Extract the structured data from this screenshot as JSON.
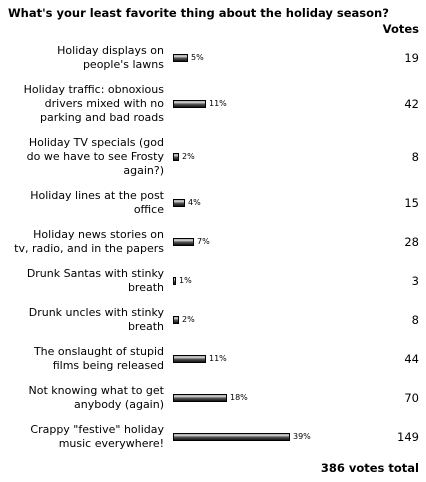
{
  "title": "What's your least favorite thing about the holiday season?",
  "votes_header": "Votes",
  "total_label": "386 votes total",
  "chart_data": {
    "type": "bar",
    "orientation": "horizontal",
    "title": "What's your least favorite thing about the holiday season?",
    "total_votes": 386,
    "bar_max_percent": 39,
    "categories": [
      [
        "Holiday displays on",
        "people's lawns"
      ],
      [
        "Holiday traffic: obnoxious",
        "drivers mixed with no",
        "parking and bad roads"
      ],
      [
        "Holiday TV specials (god",
        "do we have to see Frosty",
        "again?)"
      ],
      [
        "Holiday lines at the post",
        "office"
      ],
      [
        "Holiday news stories on",
        "tv, radio, and in the papers"
      ],
      [
        "Drunk Santas with stinky",
        "breath"
      ],
      [
        "Drunk uncles with stinky",
        "breath"
      ],
      [
        "The onslaught of stupid",
        "films being released"
      ],
      [
        "Not knowing what to get",
        "anybody (again)"
      ],
      [
        "Crappy \"festive\" holiday",
        "music everywhere!"
      ]
    ],
    "percent_labels": [
      "5%",
      "11%",
      "2%",
      "4%",
      "7%",
      "1%",
      "2%",
      "11%",
      "18%",
      "39%"
    ],
    "percents": [
      5,
      11,
      2,
      4,
      7,
      1,
      2,
      11,
      18,
      39
    ],
    "votes": [
      19,
      42,
      8,
      15,
      28,
      3,
      8,
      44,
      70,
      149
    ]
  }
}
